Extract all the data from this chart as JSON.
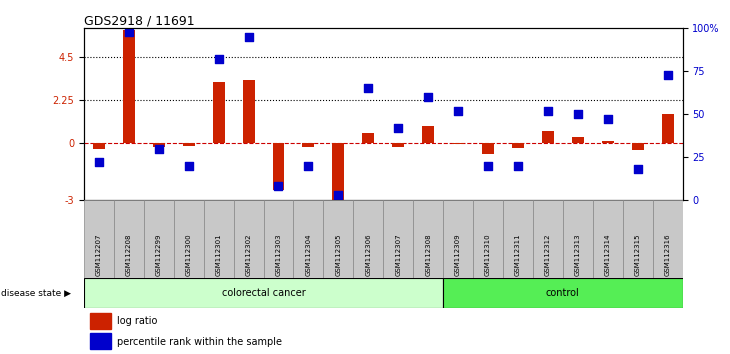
{
  "title": "GDS2918 / 11691",
  "samples": [
    "GSM112207",
    "GSM112208",
    "GSM112299",
    "GSM112300",
    "GSM112301",
    "GSM112302",
    "GSM112303",
    "GSM112304",
    "GSM112305",
    "GSM112306",
    "GSM112307",
    "GSM112308",
    "GSM112309",
    "GSM112310",
    "GSM112311",
    "GSM112312",
    "GSM112313",
    "GSM112314",
    "GSM112315",
    "GSM112316"
  ],
  "log_ratio": [
    -0.3,
    5.9,
    -0.2,
    -0.15,
    3.2,
    3.3,
    -2.5,
    -0.2,
    -3.0,
    0.5,
    -0.2,
    0.9,
    -0.05,
    -0.6,
    -0.25,
    0.6,
    0.3,
    0.1,
    -0.4,
    1.5
  ],
  "percentile_rank": [
    22,
    98,
    30,
    20,
    82,
    95,
    8,
    20,
    3,
    65,
    42,
    60,
    52,
    20,
    20,
    52,
    50,
    47,
    18,
    73
  ],
  "log_ratio_color": "#cc2200",
  "percentile_color": "#0000cc",
  "n_colorectal": 12,
  "n_control": 8,
  "colorectal_color": "#ccffcc",
  "control_color": "#55ee55",
  "ylim_left": [
    -3,
    6
  ],
  "ylim_right": [
    0,
    100
  ],
  "yticks_left": [
    -3,
    0,
    2.25,
    4.5
  ],
  "ytick_labels_left": [
    "-3",
    "0",
    "2.25",
    "4.5"
  ],
  "hline_values": [
    2.25,
    4.5
  ],
  "zero_line_color": "#cc0000",
  "bar_width": 0.4,
  "dot_size": 28,
  "label_bg": "#c8c8c8",
  "label_border": "#888888"
}
